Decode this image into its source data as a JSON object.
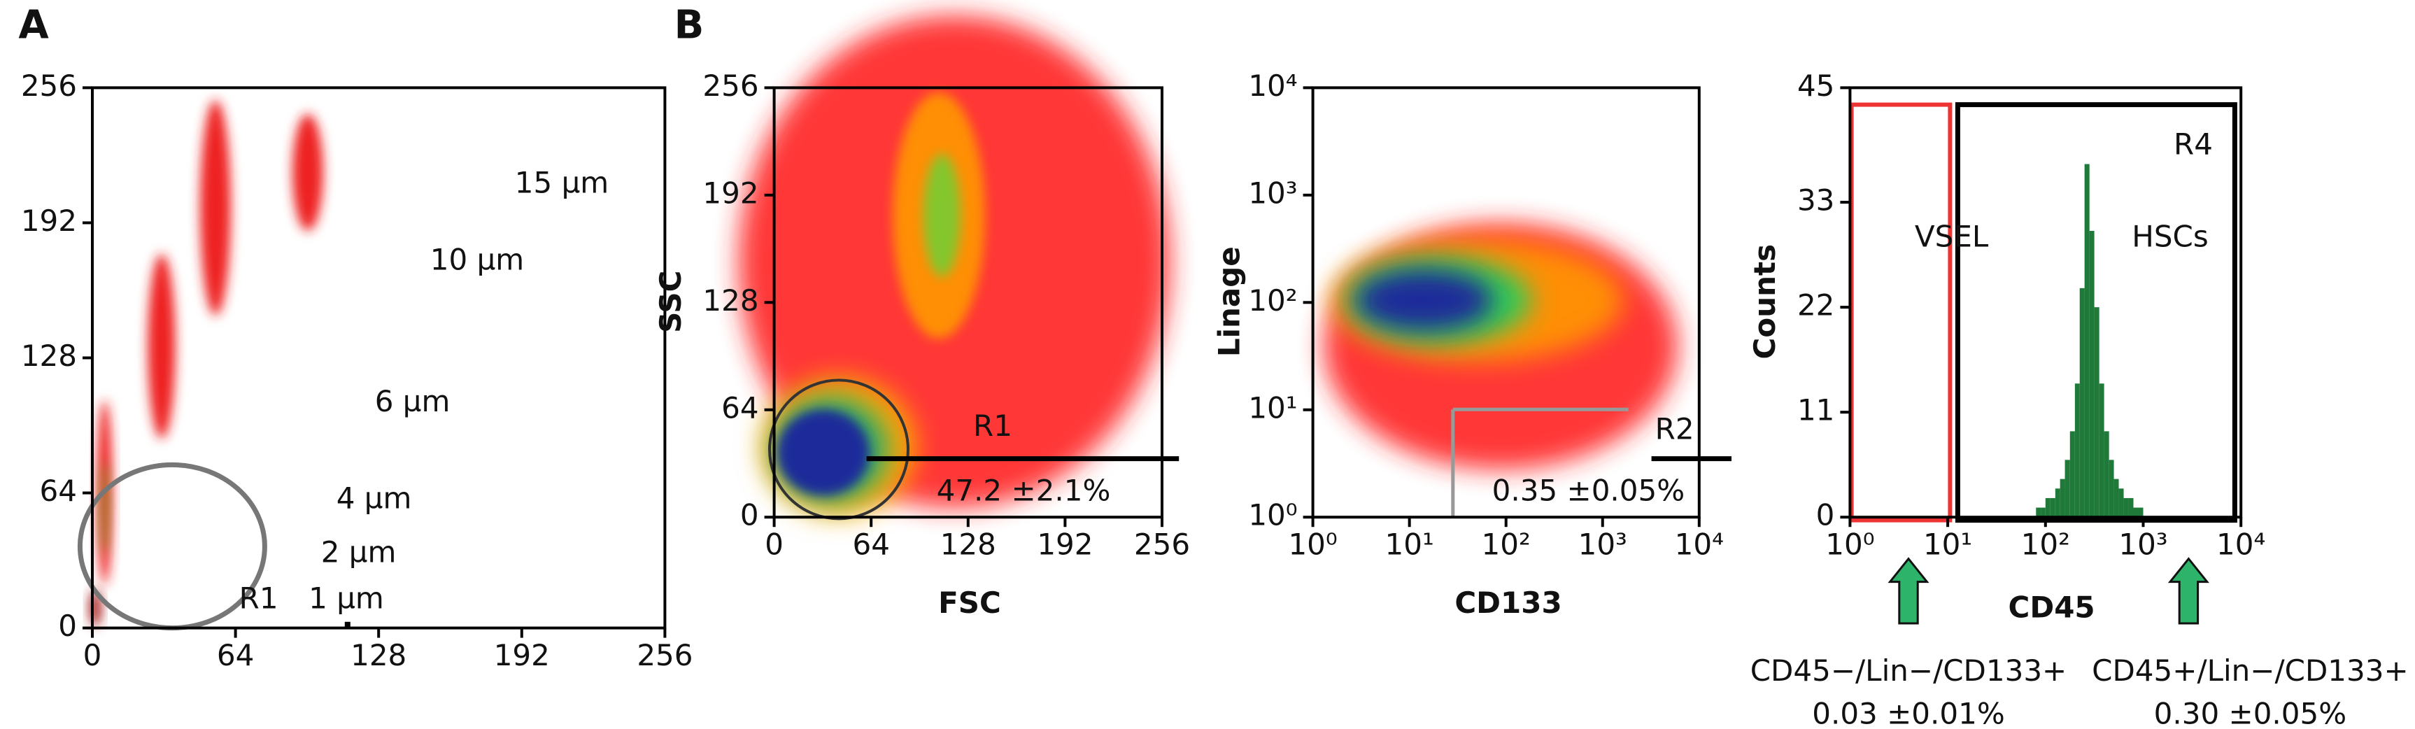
{
  "chart_data": [
    {
      "type": "scatter",
      "panel_label": "A",
      "xlim": [
        0,
        256
      ],
      "ylim": [
        0,
        256
      ],
      "xticks": [
        0,
        64,
        128,
        192,
        256
      ],
      "yticks": [
        0,
        64,
        128,
        192,
        256
      ],
      "annotations": [
        "15 µm",
        "10 µm",
        "6 µm",
        "4 µm",
        "2 µm",
        "1 µm",
        "R1"
      ]
    },
    {
      "type": "scatter",
      "panel_label": "B",
      "x_label": "FSC",
      "y_label": "SSC",
      "xlim": [
        0,
        256
      ],
      "ylim": [
        0,
        256
      ],
      "xticks": [
        0,
        64,
        128,
        192,
        256
      ],
      "yticks": [
        0,
        64,
        128,
        192,
        256
      ],
      "annotations": [
        "R1",
        "47.2 ±2.1%"
      ]
    },
    {
      "type": "scatter",
      "x_label": "CD133",
      "y_label": "Linage",
      "log_scale": true,
      "xlim": [
        1,
        10000
      ],
      "ylim": [
        1,
        10000
      ],
      "xticks": [
        {
          "value": 1,
          "label": "10⁰"
        },
        {
          "value": 10,
          "label": "10¹"
        },
        {
          "value": 100,
          "label": "10²"
        },
        {
          "value": 1000,
          "label": "10³"
        },
        {
          "value": 10000,
          "label": "10⁴"
        }
      ],
      "yticks": [
        {
          "value": 1,
          "label": "10⁰"
        },
        {
          "value": 10,
          "label": "10¹"
        },
        {
          "value": 100,
          "label": "10²"
        },
        {
          "value": 1000,
          "label": "10³"
        },
        {
          "value": 10000,
          "label": "10⁴"
        }
      ],
      "annotations": [
        "R2",
        "0.35 ±0.05%"
      ]
    },
    {
      "type": "histogram",
      "x_label": "CD45",
      "y_label": "Counts",
      "log_scale": true,
      "xlim": [
        1,
        10000
      ],
      "ylim": [
        0,
        45
      ],
      "xticks": [
        {
          "value": 1,
          "label": "10⁰"
        },
        {
          "value": 10,
          "label": "10¹"
        },
        {
          "value": 100,
          "label": "10²"
        },
        {
          "value": 1000,
          "label": "10³"
        },
        {
          "value": 10000,
          "label": "10⁴"
        }
      ],
      "yticks": [
        0,
        11,
        22,
        33,
        45
      ],
      "color": "#1f7a3a",
      "bins": [
        80,
        90,
        100,
        112,
        126,
        141,
        158,
        178,
        200,
        224,
        251,
        282,
        316,
        355,
        398,
        447,
        501,
        562,
        631,
        708,
        794,
        891,
        1000
      ],
      "values": [
        1,
        1,
        2,
        2,
        3,
        4,
        6,
        9,
        14,
        24,
        37,
        30,
        22,
        14,
        9,
        6,
        4,
        3,
        2,
        2,
        1,
        1
      ],
      "annotations": [
        "R4",
        "VSEL",
        "HSCs"
      ],
      "footnotes": [
        "CD45−/Lin−/CD133+",
        "0.03 ±0.01%",
        "CD45+/Lin−/CD133+",
        "0.30 ±0.05%"
      ]
    }
  ]
}
